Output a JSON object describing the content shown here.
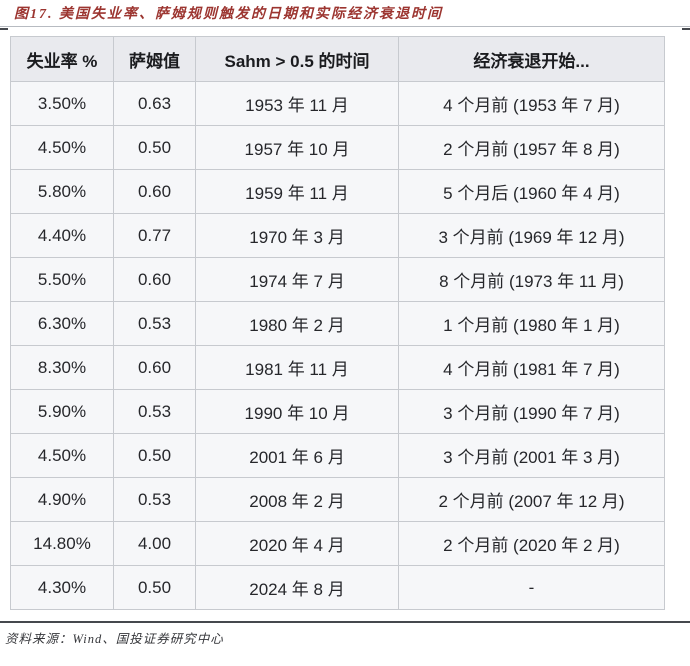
{
  "figure": {
    "title": "图17. 美国失业率、萨姆规则触发的日期和实际经济衰退时间",
    "source_note": "资料来源：Wind、国投证券研究中心"
  },
  "table": {
    "headers": [
      "失业率 %",
      "萨姆值",
      "Sahm > 0.5 的时间",
      "经济衰退开始..."
    ],
    "rows": [
      [
        "3.50%",
        "0.63",
        "1953 年 11 月",
        "4 个月前 (1953 年 7 月)"
      ],
      [
        "4.50%",
        "0.50",
        "1957 年 10 月",
        "2 个月前 (1957 年 8 月)"
      ],
      [
        "5.80%",
        "0.60",
        "1959 年 11 月",
        "5 个月后 (1960 年 4 月)"
      ],
      [
        "4.40%",
        "0.77",
        "1970 年 3 月",
        "3 个月前 (1969 年 12 月)"
      ],
      [
        "5.50%",
        "0.60",
        "1974 年 7 月",
        "8 个月前 (1973 年 11 月)"
      ],
      [
        "6.30%",
        "0.53",
        "1980 年 2 月",
        "1 个月前 (1980 年 1 月)"
      ],
      [
        "8.30%",
        "0.60",
        "1981 年 11 月",
        "4 个月前 (1981 年 7 月)"
      ],
      [
        "5.90%",
        "0.53",
        "1990 年 10 月",
        "3 个月前 (1990 年 7 月)"
      ],
      [
        "4.50%",
        "0.50",
        "2001 年 6 月",
        "3 个月前 (2001 年 3 月)"
      ],
      [
        "4.90%",
        "0.53",
        "2008 年 2 月",
        "2 个月前 (2007 年 12 月)"
      ],
      [
        "14.80%",
        "4.00",
        "2020 年 4 月",
        "2 个月前 (2020 年 2 月)"
      ],
      [
        "4.30%",
        "0.50",
        "2024 年 8 月",
        "-"
      ]
    ]
  },
  "colors": {
    "title_color": "#9c3530",
    "header_bg": "#e9eaee",
    "row_bg": "#f6f7f9",
    "border_inner": "#c7cacf",
    "border_outer": "#9ba1ab",
    "header_text": "#1b1c1f",
    "cell_text": "#26272b",
    "rule_light": "#b7bbc1",
    "rule_dark": "#45484d",
    "source_text": "#35363a"
  }
}
